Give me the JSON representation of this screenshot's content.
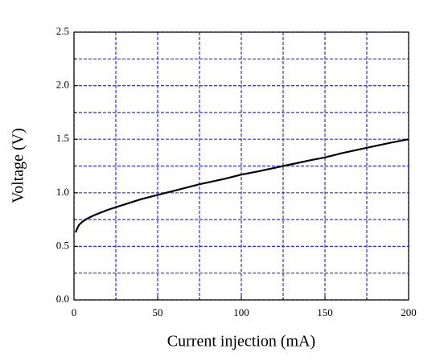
{
  "chart_data": {
    "type": "line",
    "xlabel": "Current injection (mA)",
    "ylabel": "Voltage (V)",
    "x": [
      1,
      2,
      3,
      5,
      8,
      12,
      20,
      30,
      40,
      50,
      60,
      75,
      90,
      100,
      110,
      125,
      140,
      150,
      160,
      175,
      190,
      200
    ],
    "series": [
      {
        "color": "#000000",
        "values": [
          0.63,
          0.67,
          0.7,
          0.73,
          0.76,
          0.79,
          0.84,
          0.89,
          0.94,
          0.98,
          1.02,
          1.08,
          1.13,
          1.17,
          1.2,
          1.25,
          1.3,
          1.33,
          1.37,
          1.42,
          1.47,
          1.5
        ]
      }
    ],
    "xlim": [
      0,
      200
    ],
    "ylim": [
      0,
      2.5
    ],
    "xticks": [
      0,
      50,
      100,
      150,
      200
    ],
    "yticks": [
      {
        "value": 0,
        "label": "0.0"
      },
      {
        "value": 0.5,
        "label": "0.5"
      },
      {
        "value": 1,
        "label": "1.0"
      },
      {
        "value": 1.5,
        "label": "1.5"
      },
      {
        "value": 2,
        "label": "2.0"
      },
      {
        "value": 2.5,
        "label": "2.5"
      }
    ],
    "x_minor_ticks": [
      25,
      75,
      125,
      175
    ],
    "y_minor_ticks": [
      0.25,
      0.75,
      1.25,
      1.75,
      2.25
    ],
    "grid": true,
    "grid_color": "#2b2bff"
  }
}
